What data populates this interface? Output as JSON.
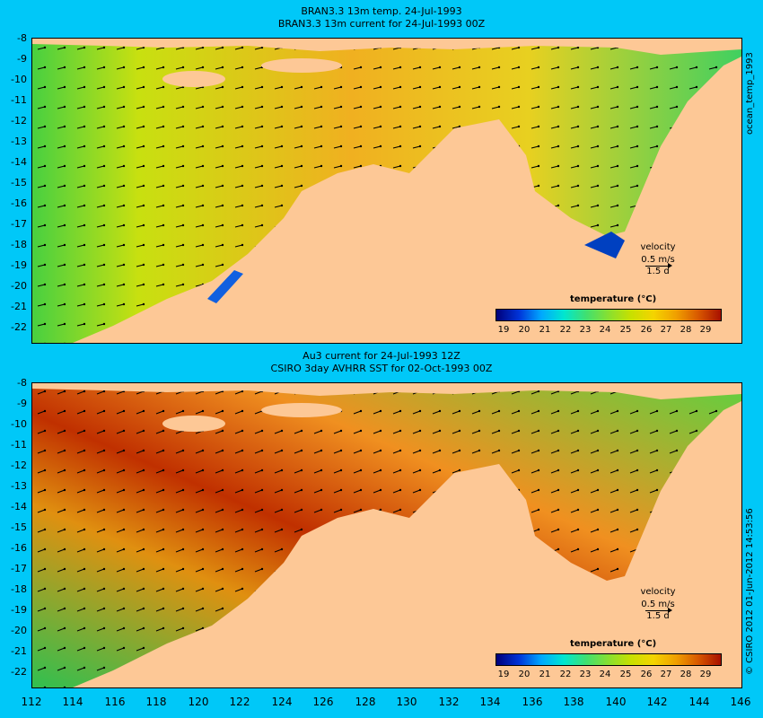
{
  "top_panel": {
    "title_line1": "BRAN3.3 13m temp. 24-Jul-1993",
    "title_line2": "BRAN3.3 13m current for 24-Jul-1993 00Z",
    "velocity_label": "velocity",
    "velocity_speed": "0.5 m/s",
    "velocity_duration": "1.5 d",
    "colorbar_title": "temperature (°C)",
    "side_label": "ocean_temp_1993"
  },
  "bottom_panel": {
    "title_line1": "Au3 current for 24-Jul-1993 12Z",
    "title_line2": "CSIRO 3day AVHRR SST for 02-Oct-1993 00Z",
    "velocity_label": "velocity",
    "velocity_speed": "0.5 m/s",
    "velocity_duration": "1.5 d",
    "colorbar_title": "temperature (°C)",
    "side_label": "© CSIRO 2012   01-Jun-2012 14:53:56"
  },
  "colorbar_ticks": [
    "19",
    "20",
    "21",
    "22",
    "23",
    "24",
    "25",
    "26",
    "27",
    "28",
    "29"
  ],
  "y_axis_ticks": [
    "-8",
    "-9",
    "-10",
    "-11",
    "-12",
    "-13",
    "-14",
    "-15",
    "-16",
    "-17",
    "-18",
    "-19",
    "-20",
    "-21",
    "-22"
  ],
  "x_axis_ticks": [
    "112",
    "114",
    "116",
    "118",
    "120",
    "122",
    "124",
    "126",
    "128",
    "130",
    "132",
    "134",
    "136",
    "138",
    "140",
    "142",
    "144",
    "146"
  ],
  "colors": {
    "background": "#00c8f8",
    "land": "#fdc896",
    "warm_water": "#f0a020",
    "cool_water": "#48d848"
  }
}
